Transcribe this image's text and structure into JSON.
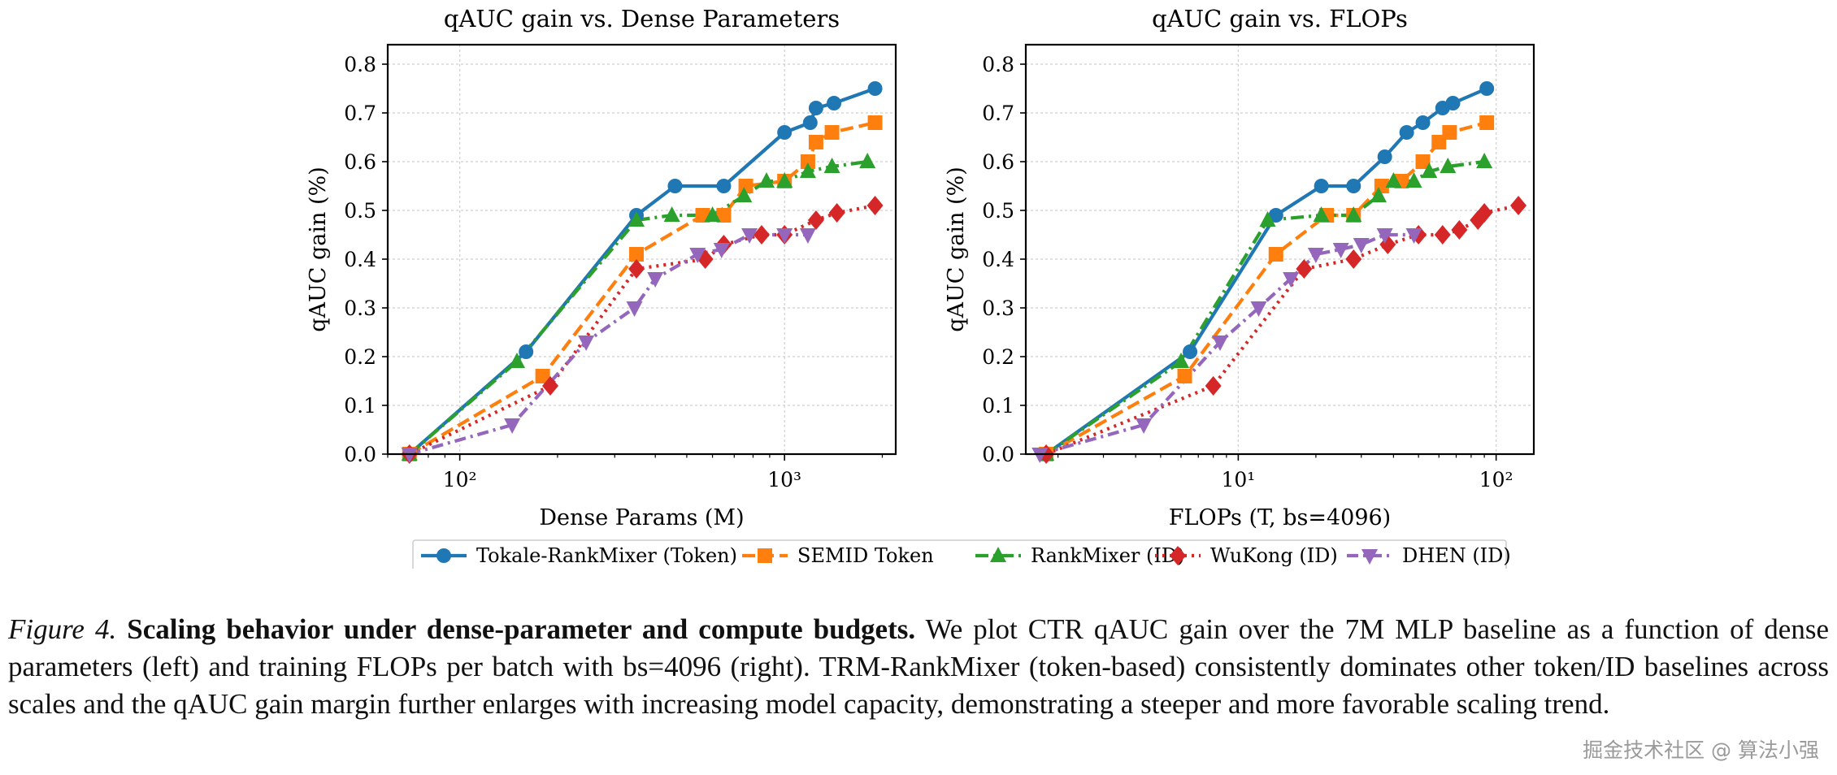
{
  "colors": {
    "tokale": "#1f77b4",
    "semid": "#ff7f0e",
    "rankmixer": "#2ca02c",
    "wukong": "#d62728",
    "dhen": "#9467bd"
  },
  "chart_data": [
    {
      "type": "line",
      "title": "qAUC gain vs. Dense Parameters",
      "xlabel": "Dense Params (M)",
      "ylabel": "qAUC gain (%)",
      "xscale": "log",
      "xlim": [
        60,
        2200
      ],
      "ylim": [
        0,
        0.84
      ],
      "xtick_labels": [
        "10²",
        "10³"
      ],
      "ytick_labels": [
        "0.0",
        "0.1",
        "0.2",
        "0.3",
        "0.4",
        "0.5",
        "0.6",
        "0.7",
        "0.8"
      ],
      "grid": true,
      "series": [
        {
          "name": "Tokale-RankMixer (Token)",
          "x": [
            70,
            160,
            350,
            460,
            650,
            1000,
            1200,
            1250,
            1420,
            1900
          ],
          "y": [
            0.0,
            0.21,
            0.49,
            0.55,
            0.55,
            0.66,
            0.68,
            0.71,
            0.72,
            0.75
          ]
        },
        {
          "name": "SEMID Token",
          "x": [
            70,
            180,
            350,
            560,
            650,
            760,
            1000,
            1180,
            1250,
            1400,
            1900
          ],
          "y": [
            0.0,
            0.16,
            0.41,
            0.49,
            0.49,
            0.55,
            0.56,
            0.6,
            0.64,
            0.66,
            0.68
          ]
        },
        {
          "name": "RankMixer (ID)",
          "x": [
            70,
            150,
            350,
            450,
            600,
            750,
            880,
            1000,
            1180,
            1400,
            1800
          ],
          "y": [
            0.0,
            0.19,
            0.48,
            0.49,
            0.49,
            0.53,
            0.56,
            0.56,
            0.58,
            0.59,
            0.6
          ]
        },
        {
          "name": "WuKong (ID)",
          "x": [
            70,
            190,
            350,
            570,
            650,
            850,
            1000,
            1250,
            1450,
            1900
          ],
          "y": [
            0.0,
            0.14,
            0.38,
            0.4,
            0.43,
            0.45,
            0.45,
            0.48,
            0.495,
            0.51
          ]
        },
        {
          "name": "DHEN (ID)",
          "x": [
            70,
            145,
            245,
            345,
            400,
            540,
            640,
            780,
            1000,
            1180
          ],
          "y": [
            0.0,
            0.06,
            0.23,
            0.3,
            0.36,
            0.41,
            0.42,
            0.45,
            0.45,
            0.45
          ]
        }
      ]
    },
    {
      "type": "line",
      "title": "qAUC gain vs. FLOPs",
      "xlabel": "FLOPs (T, bs=4096)",
      "ylabel": "qAUC gain (%)",
      "xscale": "log",
      "xlim": [
        1.5,
        140
      ],
      "ylim": [
        0,
        0.84
      ],
      "xtick_labels": [
        "10¹",
        "10²"
      ],
      "ytick_labels": [
        "0.0",
        "0.1",
        "0.2",
        "0.3",
        "0.4",
        "0.5",
        "0.6",
        "0.7",
        "0.8"
      ],
      "grid": true,
      "series": [
        {
          "name": "Tokale-RankMixer (Token)",
          "x": [
            1.8,
            6.5,
            14,
            21,
            28,
            37,
            45,
            52,
            62,
            68,
            92
          ],
          "y": [
            0.0,
            0.21,
            0.49,
            0.55,
            0.55,
            0.61,
            0.66,
            0.68,
            0.71,
            0.72,
            0.75
          ]
        },
        {
          "name": "SEMID Token",
          "x": [
            1.8,
            6.2,
            14,
            22,
            28,
            36,
            43,
            52,
            60,
            66,
            92
          ],
          "y": [
            0.0,
            0.16,
            0.41,
            0.49,
            0.49,
            0.55,
            0.56,
            0.6,
            0.64,
            0.66,
            0.68
          ]
        },
        {
          "name": "RankMixer (ID)",
          "x": [
            1.8,
            6.0,
            13,
            21,
            28,
            35,
            40,
            48,
            55,
            65,
            90
          ],
          "y": [
            0.0,
            0.19,
            0.48,
            0.49,
            0.49,
            0.53,
            0.56,
            0.56,
            0.58,
            0.59,
            0.6
          ]
        },
        {
          "name": "WuKong (ID)",
          "x": [
            1.8,
            8.0,
            18,
            28,
            38,
            50,
            62,
            72,
            85,
            90,
            122
          ],
          "y": [
            0.0,
            0.14,
            0.38,
            0.4,
            0.43,
            0.45,
            0.45,
            0.46,
            0.48,
            0.495,
            0.51
          ]
        },
        {
          "name": "DHEN (ID)",
          "x": [
            1.7,
            4.3,
            8.5,
            12,
            16,
            20,
            25,
            30,
            37,
            48
          ],
          "y": [
            0.0,
            0.06,
            0.23,
            0.3,
            0.36,
            0.41,
            0.42,
            0.43,
            0.45,
            0.45
          ]
        }
      ]
    }
  ],
  "legend": {
    "placement": "bottom-center",
    "entries": [
      "Tokale-RankMixer (Token)",
      "SEMID Token",
      "RankMixer (ID)",
      "WuKong (ID)",
      "DHEN (ID)"
    ]
  },
  "caption": {
    "label": "Figure 4.",
    "title": "Scaling behavior under dense-parameter and compute budgets.",
    "body": "We plot CTR qAUC gain over the 7M MLP baseline as a function of dense parameters (left) and training FLOPs per batch with bs=4096 (right). TRM-RankMixer (token-based) consistently dominates other token/ID baselines across scales and the qAUC gain margin further enlarges with increasing model capacity, demonstrating a steeper and more favorable scaling trend."
  },
  "watermark": "掘金技术社区 @ 算法小强"
}
